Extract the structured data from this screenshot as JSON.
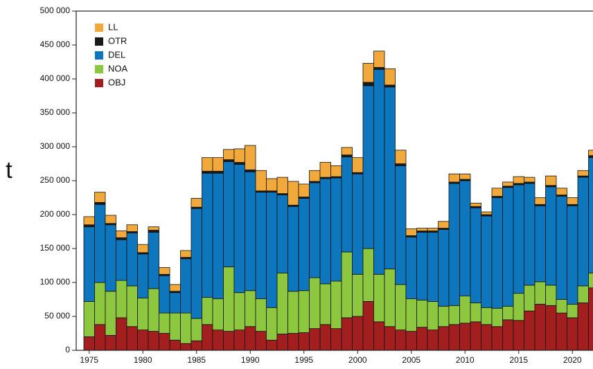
{
  "chart_data": {
    "type": "bar",
    "stacked": true,
    "ylabel": "t",
    "ylim": [
      0,
      500000
    ],
    "grid": false,
    "legend_position": "top-left",
    "x": [
      1975,
      1976,
      1977,
      1978,
      1979,
      1980,
      1981,
      1982,
      1983,
      1984,
      1985,
      1986,
      1987,
      1988,
      1989,
      1990,
      1991,
      1992,
      1993,
      1994,
      1995,
      1996,
      1997,
      1998,
      1999,
      2000,
      2001,
      2002,
      2003,
      2004,
      2005,
      2006,
      2007,
      2008,
      2009,
      2010,
      2011,
      2012,
      2013,
      2014,
      2015,
      2016,
      2017,
      2018,
      2019,
      2020,
      2021,
      2022,
      2023
    ],
    "xticks": [
      "1975",
      "1980",
      "1985",
      "1990",
      "1995",
      "2000",
      "2005",
      "2010",
      "2015",
      "2020"
    ],
    "xtick_values": [
      1975,
      1980,
      1985,
      1990,
      1995,
      2000,
      2005,
      2010,
      2015,
      2020
    ],
    "yticks": [
      "0",
      "50 000",
      "100 000",
      "150 000",
      "200 000",
      "250 000",
      "300 000",
      "350 000",
      "400 000",
      "450 000",
      "500 000"
    ],
    "ytick_values": [
      0,
      50000,
      100000,
      150000,
      200000,
      250000,
      300000,
      350000,
      400000,
      450000,
      500000
    ],
    "series": [
      {
        "name": "OBJ",
        "color": "#a31f1f",
        "values": [
          20000,
          38000,
          22000,
          48000,
          35000,
          30000,
          28000,
          25000,
          15000,
          10000,
          14000,
          38000,
          30000,
          28000,
          30000,
          35000,
          28000,
          15000,
          24000,
          25000,
          26000,
          32000,
          38000,
          32000,
          48000,
          50000,
          72000,
          42000,
          35000,
          30000,
          28000,
          34000,
          30000,
          35000,
          38000,
          40000,
          42000,
          38000,
          35000,
          45000,
          44000,
          58000,
          68000,
          66000,
          55000,
          48000,
          70000,
          92000,
          75000
        ]
      },
      {
        "name": "NOA",
        "color": "#8dc63f",
        "values": [
          52000,
          62000,
          65000,
          55000,
          60000,
          47000,
          63000,
          30000,
          40000,
          45000,
          33000,
          40000,
          46000,
          95000,
          55000,
          53000,
          48000,
          48000,
          90000,
          62000,
          62000,
          75000,
          60000,
          70000,
          97000,
          62000,
          78000,
          70000,
          85000,
          67000,
          48000,
          40000,
          42000,
          30000,
          28000,
          40000,
          28000,
          25000,
          27000,
          20000,
          40000,
          38000,
          33000,
          30000,
          20000,
          20000,
          25000,
          22000,
          25000
        ]
      },
      {
        "name": "DEL",
        "color": "#0e76bc",
        "values": [
          110000,
          115000,
          98000,
          60000,
          78000,
          65000,
          83000,
          55000,
          30000,
          80000,
          162000,
          183000,
          185000,
          155000,
          189000,
          175000,
          157000,
          170000,
          115000,
          125000,
          136000,
          140000,
          155000,
          152000,
          140000,
          148000,
          240000,
          302000,
          268000,
          175000,
          91000,
          100000,
          102000,
          113000,
          180000,
          170000,
          140000,
          135000,
          163000,
          175000,
          160000,
          150000,
          112000,
          145000,
          152000,
          145000,
          160000,
          170000,
          200000
        ]
      },
      {
        "name": "OTR",
        "color": "#1a1a1a",
        "values": [
          3000,
          3000,
          2000,
          3000,
          2000,
          2000,
          3000,
          2000,
          2000,
          2000,
          2000,
          3000,
          3000,
          3000,
          3000,
          3000,
          2000,
          2000,
          2000,
          2000,
          2000,
          2000,
          2000,
          2000,
          3000,
          2000,
          5000,
          3000,
          3000,
          3000,
          2000,
          2000,
          2000,
          2000,
          2000,
          2000,
          2000,
          2000,
          2000,
          2000,
          2000,
          2000,
          2000,
          2000,
          2000,
          2000,
          2000,
          3000,
          3000
        ]
      },
      {
        "name": "LL",
        "color": "#f2a93b",
        "values": [
          12000,
          15000,
          12000,
          10000,
          10000,
          12000,
          5000,
          10000,
          10000,
          10000,
          13000,
          20000,
          20000,
          15000,
          20000,
          36000,
          30000,
          18000,
          24000,
          35000,
          19000,
          16000,
          22000,
          16000,
          11000,
          22000,
          28000,
          24000,
          24000,
          20000,
          10000,
          4000,
          4000,
          10000,
          12000,
          8000,
          5000,
          4000,
          12000,
          6000,
          10000,
          7000,
          10000,
          14000,
          10000,
          10000,
          8000,
          8000,
          0
        ]
      }
    ]
  }
}
